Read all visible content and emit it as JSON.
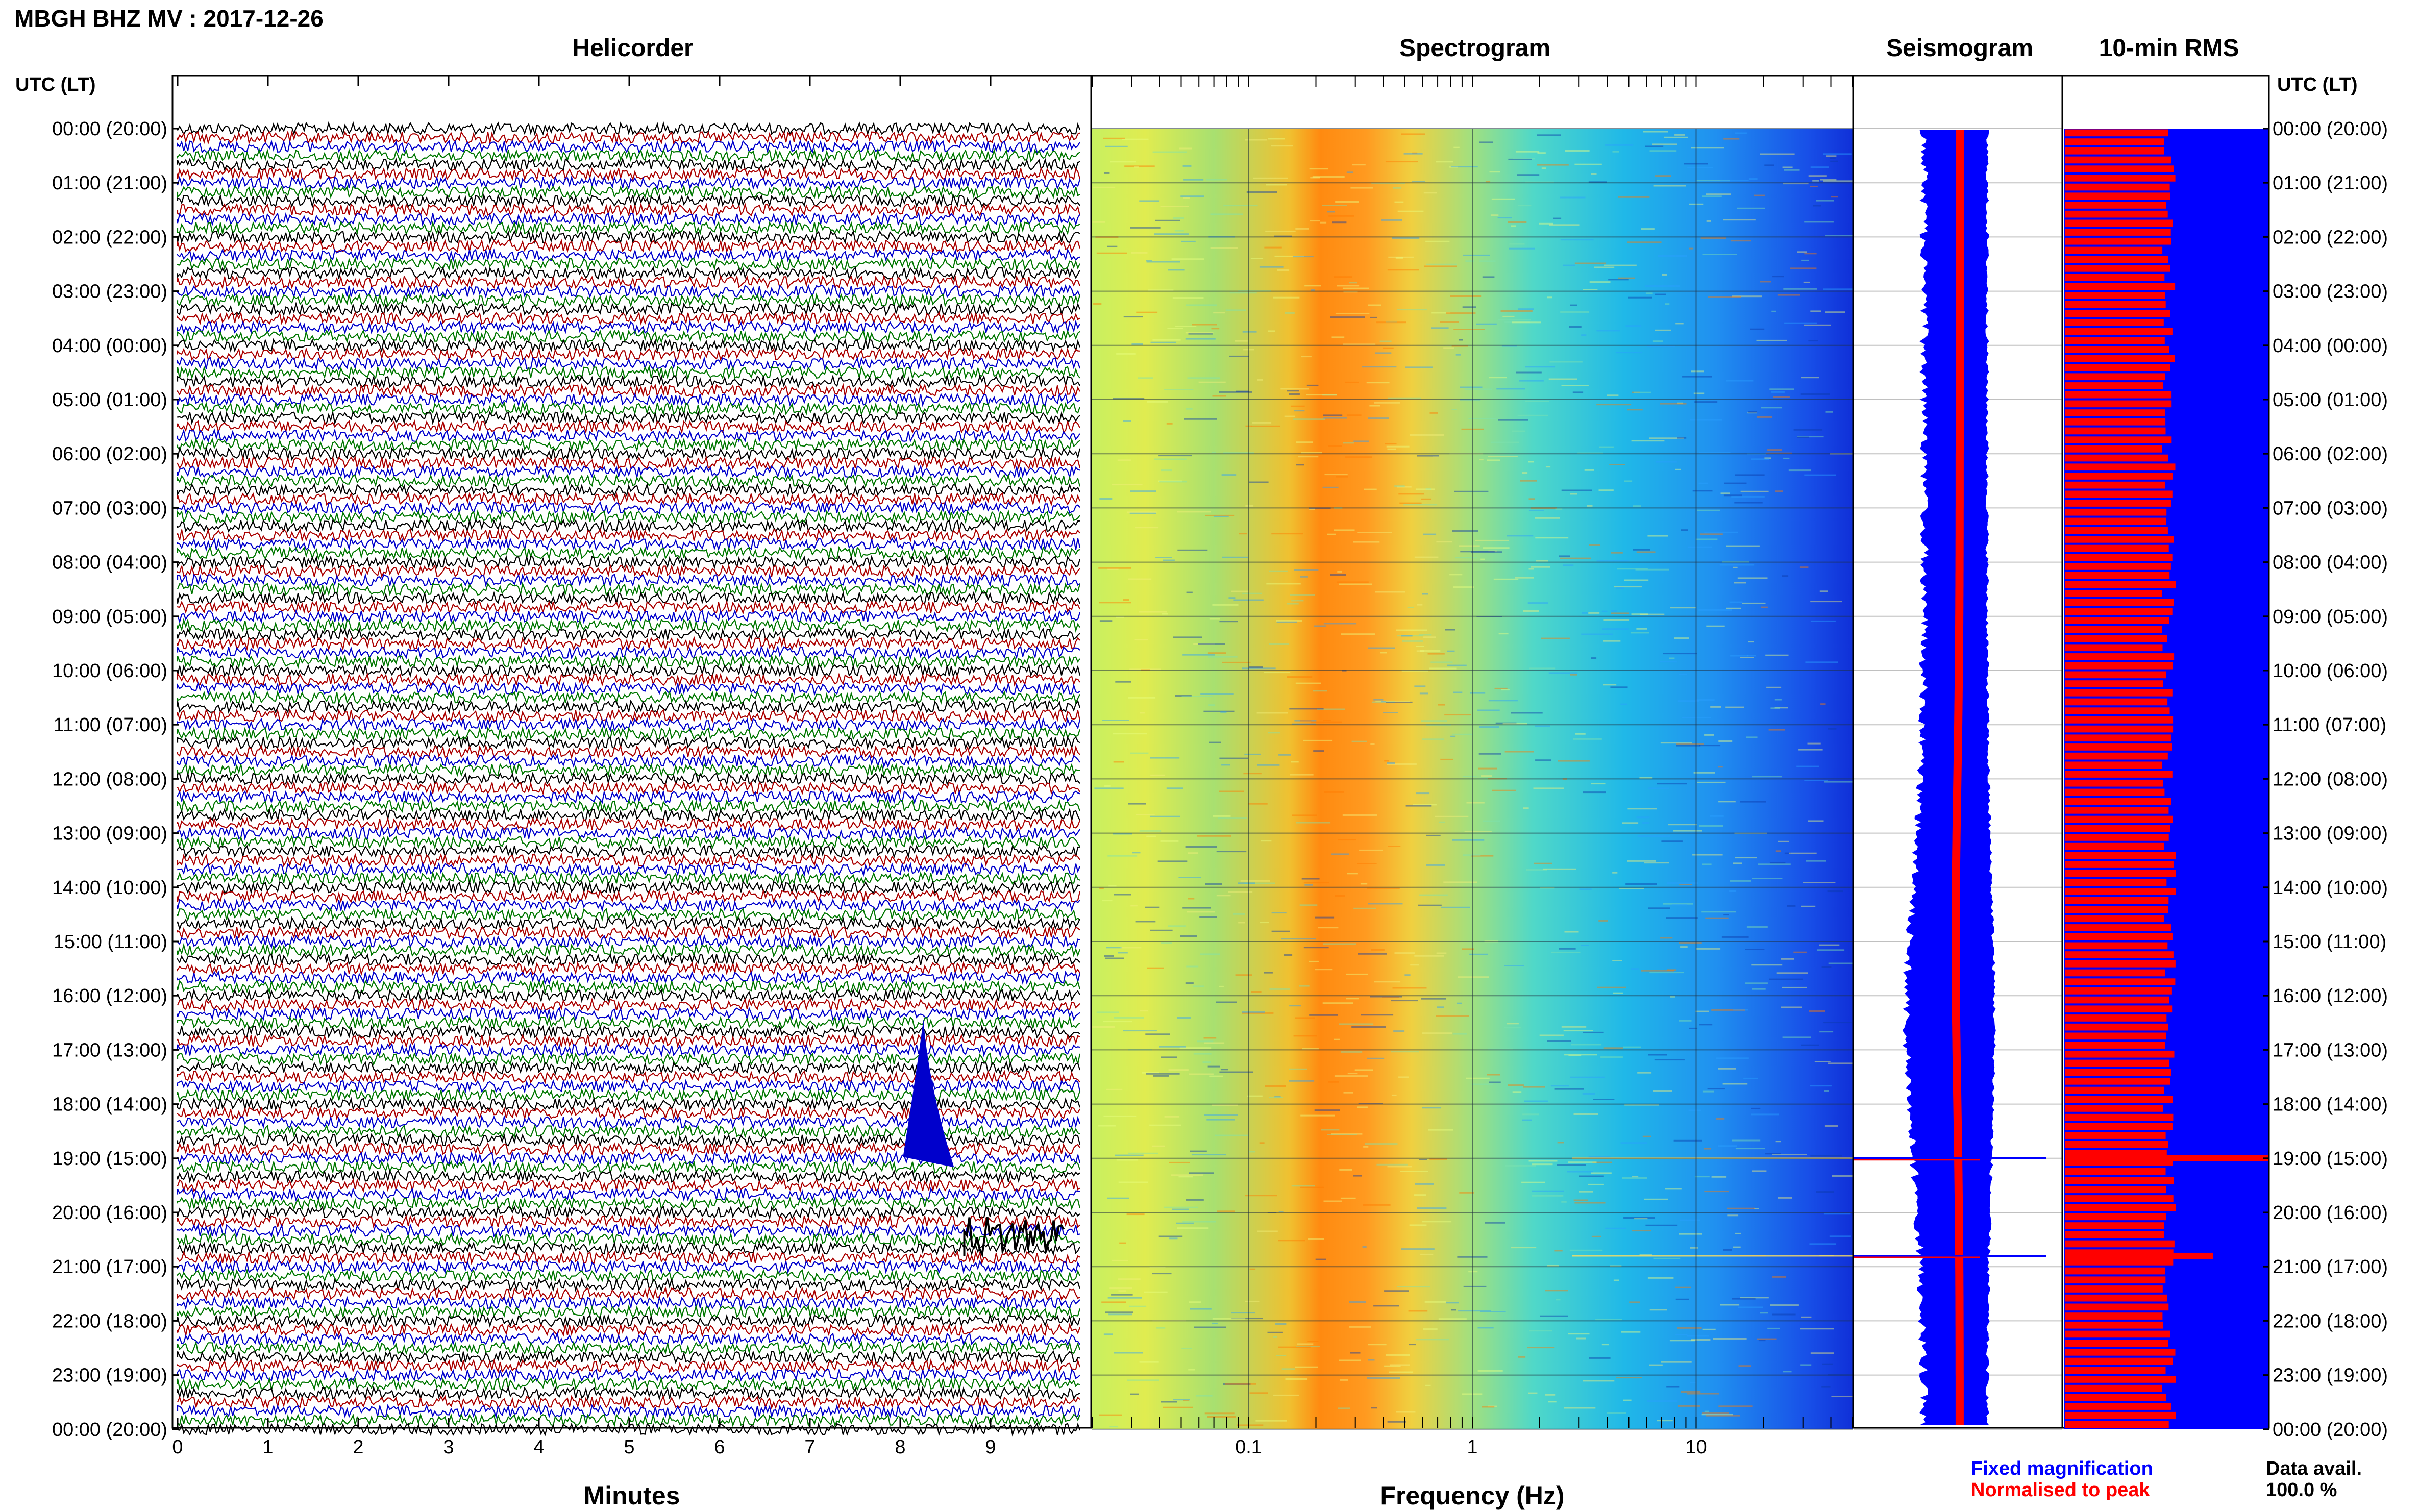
{
  "header": {
    "title": "MBGH BHZ MV : 2017-12-26",
    "utc_label_left": "UTC (LT)",
    "utc_label_right": "UTC (LT)"
  },
  "panels": {
    "helicorder": "Helicorder",
    "spectrogram": "Spectrogram",
    "seismogram": "Seismogram",
    "rms": "10-min RMS"
  },
  "time_labels": [
    "00:00 (20:00)",
    "01:00 (21:00)",
    "02:00 (22:00)",
    "03:00 (23:00)",
    "04:00 (00:00)",
    "05:00 (01:00)",
    "06:00 (02:00)",
    "07:00 (03:00)",
    "08:00 (04:00)",
    "09:00 (05:00)",
    "10:00 (06:00)",
    "11:00 (07:00)",
    "12:00 (08:00)",
    "13:00 (09:00)",
    "14:00 (10:00)",
    "15:00 (11:00)",
    "16:00 (12:00)",
    "17:00 (13:00)",
    "18:00 (14:00)",
    "19:00 (15:00)",
    "20:00 (16:00)",
    "21:00 (17:00)",
    "22:00 (18:00)",
    "23:00 (19:00)",
    "00:00 (20:00)"
  ],
  "helicorder_axis": {
    "label": "Minutes",
    "ticks": [
      "0",
      "1",
      "2",
      "3",
      "4",
      "5",
      "6",
      "7",
      "8",
      "9"
    ]
  },
  "spectrogram_axis": {
    "label": "Frequency (Hz)",
    "ticks": [
      "0.1",
      "1",
      "10"
    ],
    "scale": "log",
    "range_hz": [
      0.02,
      50
    ]
  },
  "legend": {
    "fixed": "Fixed magnification",
    "normalised": "Normalised to peak",
    "fixed_color": "#0000ff",
    "normalised_color": "#ff0000"
  },
  "data_avail": {
    "label": "Data avail.",
    "value": "100.0 %"
  },
  "colors": {
    "trace_cycle": [
      "#000000",
      "#aa0000",
      "#0000cc",
      "#007700"
    ],
    "rms_bar": "#ff0000",
    "rms_background": "#0000ff"
  },
  "chart_data": {
    "type": "helicorder",
    "hours": 24,
    "minutes_per_line": 10,
    "events": [
      {
        "hour": 18.6,
        "minute": 8.2,
        "note": "large event"
      },
      {
        "hour": 20.8,
        "minute": 9.5,
        "note": "event"
      }
    ],
    "rms_spikes_hours": [
      19.0,
      20.8
    ]
  }
}
